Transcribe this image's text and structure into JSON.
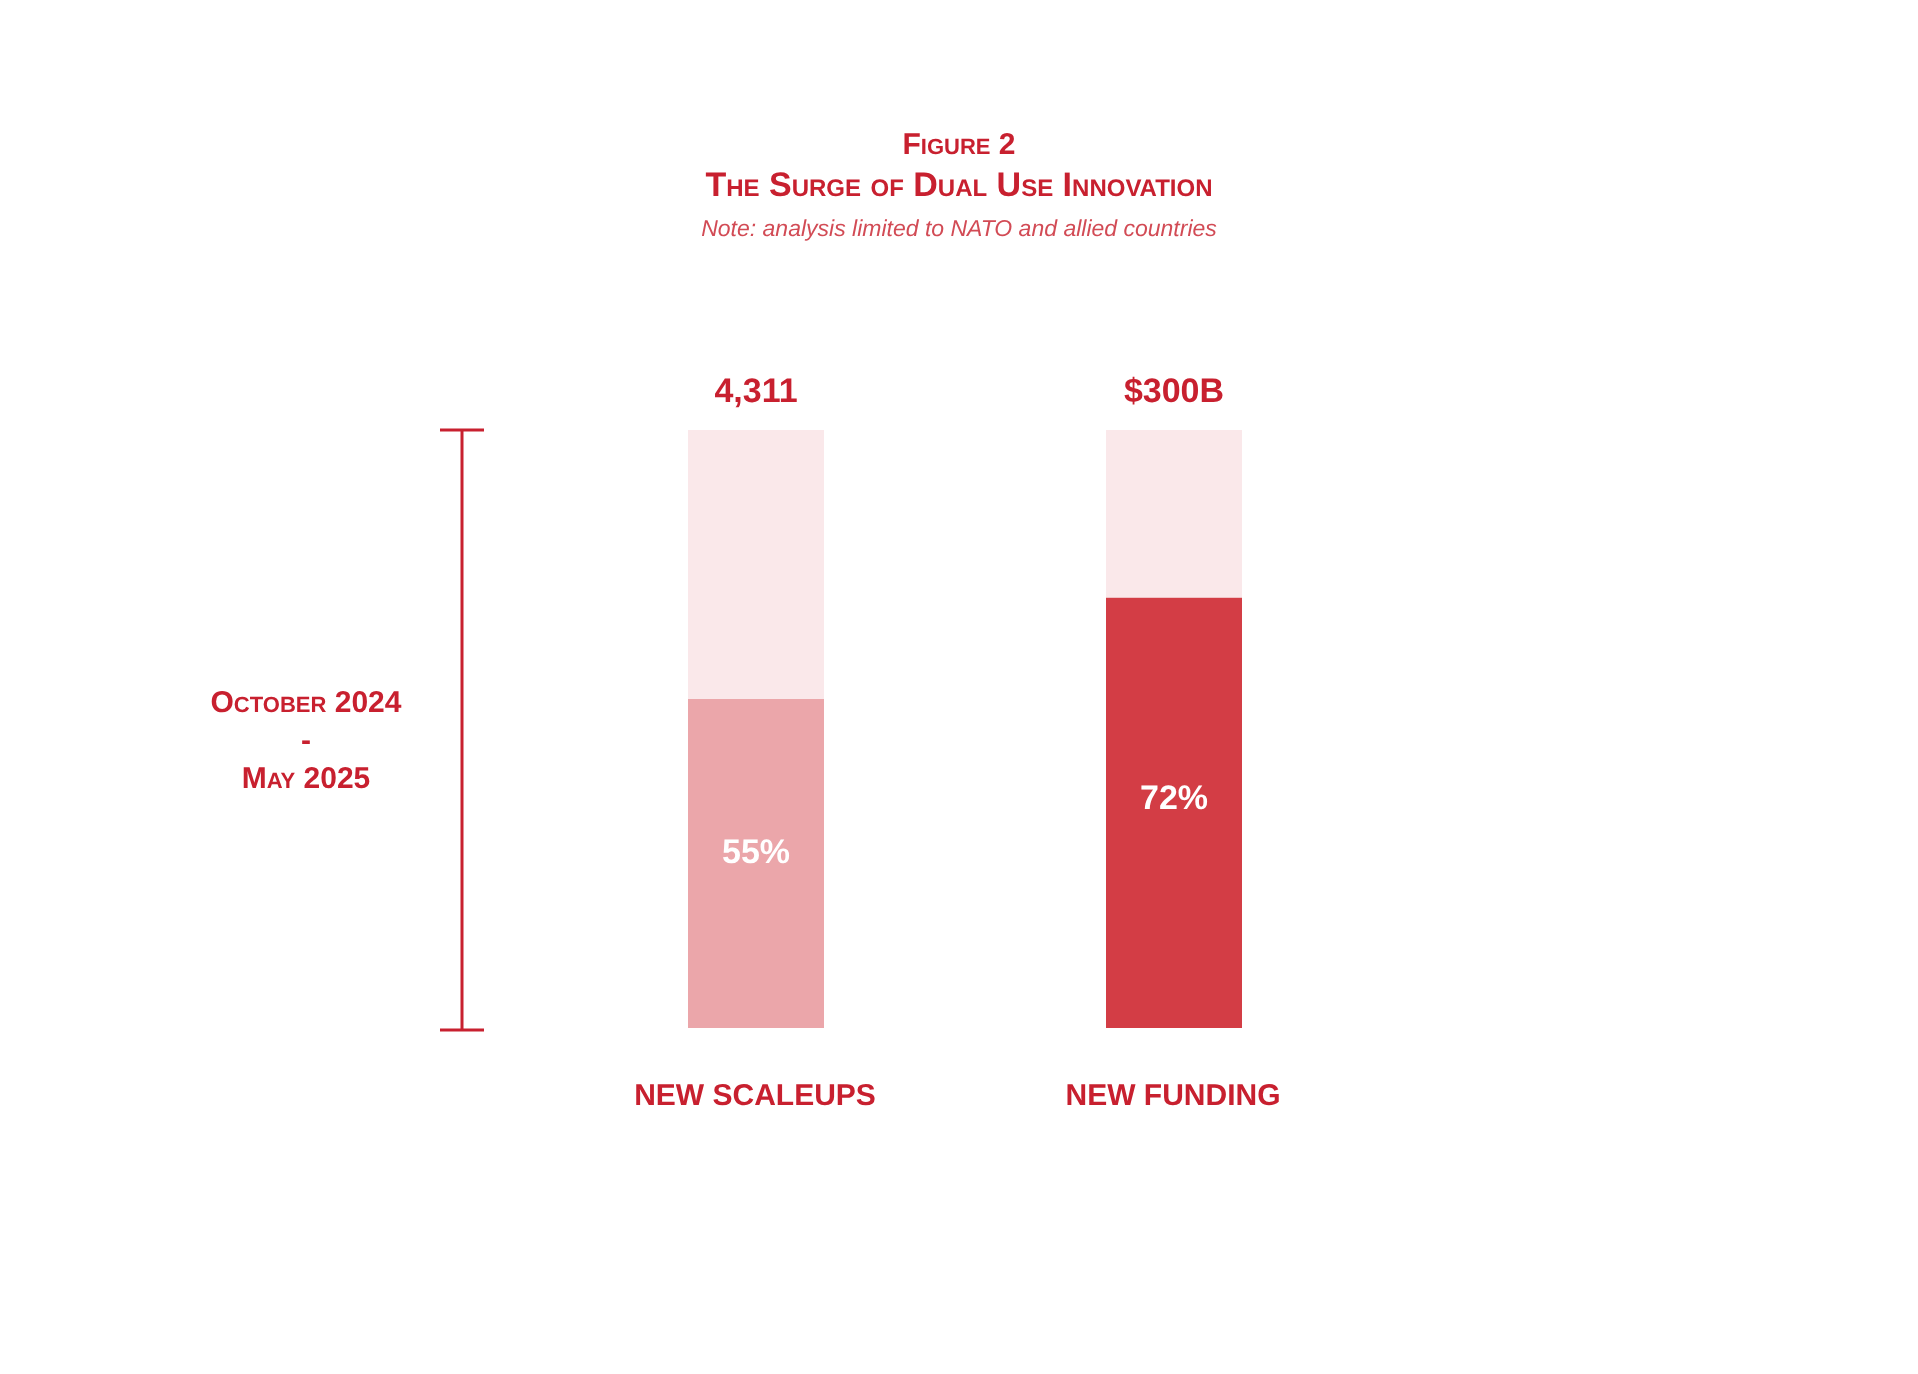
{
  "chart_data": {
    "type": "bar",
    "title": "Figure 2",
    "subtitle": "The Surge of Dual Use Innovation",
    "categories": [
      "NEW SCALEUPS",
      "NEW FUNDING"
    ],
    "stacked": true,
    "ylim": [
      0,
      100
    ],
    "series": [
      {
        "colors": [
          "#eba6aa",
          "#d33d45"
        ],
        "values": [
          55,
          72
        ],
        "value_labels": [
          "55%",
          "72%"
        ]
      },
      {
        "colors": [
          "#fae8ea",
          "#fae8ea"
        ],
        "values": [
          45,
          28
        ]
      }
    ],
    "annotations": [
      "Note: analysis limited to NATO and allied countries",
      "October 2024\n-\nMay 2025",
      {
        "text": "4,311",
        "x": "NEW SCALEUPS",
        "y": 100
      },
      {
        "text": "$300B",
        "x": "NEW FUNDING",
        "y": 100
      }
    ]
  }
}
